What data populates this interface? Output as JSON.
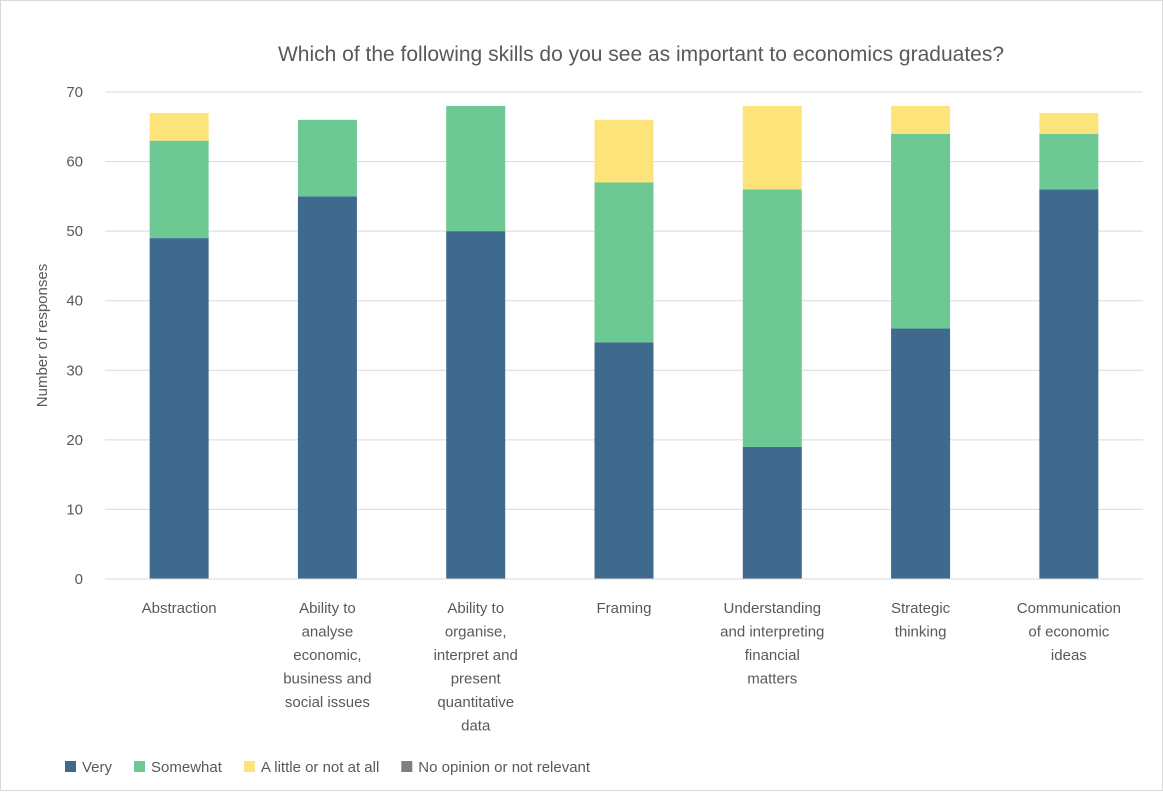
{
  "chart_data": {
    "type": "bar",
    "stacked": true,
    "title": "Which of the following skills do you see as important to economics graduates?",
    "xlabel": "",
    "ylabel": "Number of responses",
    "ylim": [
      0,
      70
    ],
    "yticks": [
      0,
      10,
      20,
      30,
      40,
      50,
      60,
      70
    ],
    "grid": true,
    "legend_position": "bottom",
    "categories": [
      [
        "Abstraction"
      ],
      [
        "Ability to",
        "analyse",
        "economic,",
        "business and",
        "social issues"
      ],
      [
        "Ability to",
        "organise,",
        "interpret and",
        "present",
        "quantitative",
        "data"
      ],
      [
        "Framing"
      ],
      [
        "Understanding",
        "and interpreting",
        "financial",
        "matters"
      ],
      [
        "Strategic",
        "thinking"
      ],
      [
        "Communication",
        "of economic",
        "ideas"
      ]
    ],
    "series": [
      {
        "name": "Very",
        "color": "#3f6a8e",
        "values": [
          49,
          55,
          50,
          34,
          19,
          36,
          56
        ]
      },
      {
        "name": "Somewhat",
        "color": "#6dc993",
        "values": [
          14,
          11,
          18,
          23,
          37,
          28,
          8
        ]
      },
      {
        "name": "A little or not at all",
        "color": "#fde47a",
        "values": [
          4,
          0,
          0,
          9,
          12,
          4,
          3
        ]
      },
      {
        "name": "No opinion or not relevant",
        "color": "#7f7f7f",
        "values": [
          0,
          0,
          0,
          0,
          0,
          0,
          0
        ]
      }
    ]
  }
}
